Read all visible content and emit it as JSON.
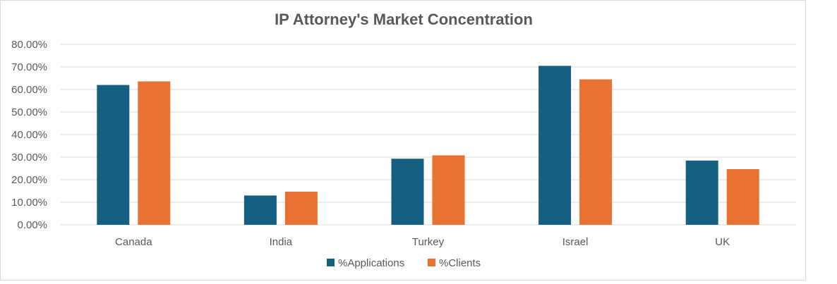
{
  "chart_data": {
    "type": "bar",
    "title": "IP Attorney's Market Concentration",
    "xlabel": "",
    "ylabel": "",
    "categories": [
      "Canada",
      "India",
      "Turkey",
      "Israel",
      "UK"
    ],
    "series": [
      {
        "name": "%Applications",
        "color": "#156082",
        "values": [
          0.62,
          0.13,
          0.293,
          0.705,
          0.285
        ]
      },
      {
        "name": "%Clients",
        "color": "#e97132",
        "values": [
          0.636,
          0.147,
          0.308,
          0.645,
          0.247
        ]
      }
    ],
    "ylim": [
      0,
      0.8
    ],
    "yticks": [
      "0.00%",
      "10.00%",
      "20.00%",
      "30.00%",
      "40.00%",
      "50.00%",
      "60.00%",
      "70.00%",
      "80.00%"
    ],
    "grid": true,
    "legend": "bottom-center"
  }
}
